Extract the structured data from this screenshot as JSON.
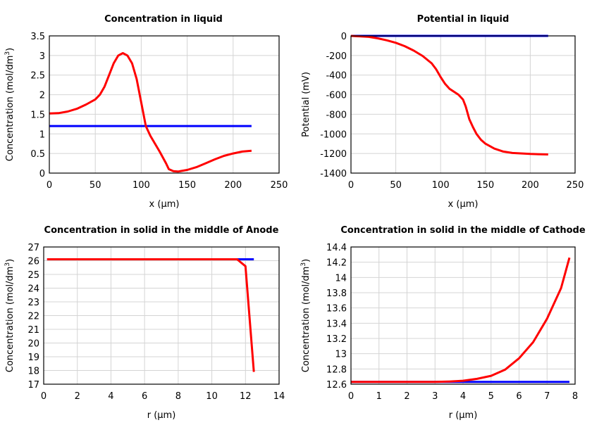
{
  "chart_data": [
    {
      "type": "line",
      "title": "Concentration in liquid",
      "xlabel": "x (µm)",
      "ylabel": "Concentration (mol/dm",
      "ylabel_sup": "3",
      "ylabel_end": ")",
      "xlim": [
        0,
        250
      ],
      "ylim": [
        0,
        3.5
      ],
      "xticks": [
        0,
        50,
        100,
        150,
        200,
        250
      ],
      "yticks": [
        0,
        0.5,
        1,
        1.5,
        2,
        2.5,
        3,
        3.5
      ],
      "grid": true,
      "series": [
        {
          "color": "#0000ff",
          "x": [
            0,
            220
          ],
          "y": [
            1.2,
            1.2
          ]
        },
        {
          "color": "#ff0000",
          "x": [
            0,
            10,
            20,
            30,
            40,
            50,
            55,
            60,
            65,
            70,
            75,
            80,
            85,
            90,
            95,
            100,
            105,
            110,
            120,
            127,
            130,
            135,
            140,
            150,
            160,
            170,
            180,
            190,
            200,
            210,
            220
          ],
          "y": [
            1.52,
            1.53,
            1.57,
            1.64,
            1.75,
            1.88,
            2.0,
            2.2,
            2.5,
            2.8,
            3.0,
            3.06,
            3.0,
            2.8,
            2.4,
            1.8,
            1.2,
            0.95,
            0.55,
            0.25,
            0.1,
            0.05,
            0.04,
            0.08,
            0.15,
            0.25,
            0.35,
            0.44,
            0.5,
            0.55,
            0.57
          ]
        }
      ]
    },
    {
      "type": "line",
      "title": "Potential in liquid",
      "xlabel": "x (µm)",
      "ylabel": "Potential (mV)",
      "xlim": [
        0,
        250
      ],
      "ylim": [
        -1400,
        0
      ],
      "xticks": [
        0,
        50,
        100,
        150,
        200,
        250
      ],
      "yticks": [
        -1400,
        -1200,
        -1000,
        -800,
        -600,
        -400,
        -200,
        0
      ],
      "grid": true,
      "series": [
        {
          "color": "#0000ff",
          "x": [
            0,
            220
          ],
          "y": [
            0,
            0
          ]
        },
        {
          "color": "#ff0000",
          "x": [
            0,
            20,
            30,
            40,
            50,
            60,
            70,
            80,
            90,
            95,
            100,
            105,
            110,
            120,
            125,
            128,
            132,
            136,
            140,
            145,
            150,
            160,
            170,
            180,
            200,
            220
          ],
          "y": [
            0,
            -10,
            -25,
            -45,
            -70,
            -105,
            -150,
            -205,
            -280,
            -340,
            -420,
            -490,
            -540,
            -600,
            -650,
            -720,
            -850,
            -930,
            -1000,
            -1060,
            -1100,
            -1150,
            -1180,
            -1195,
            -1205,
            -1210
          ]
        }
      ]
    },
    {
      "type": "line",
      "title": "Concentration in solid in the middle of Anode",
      "xlabel": "r (µm)",
      "ylabel": "Concentration (mol/dm",
      "ylabel_sup": "3",
      "ylabel_end": ")",
      "xlim": [
        0,
        14
      ],
      "ylim": [
        17,
        27
      ],
      "xticks": [
        0,
        2,
        4,
        6,
        8,
        10,
        12,
        14
      ],
      "yticks": [
        17,
        18,
        19,
        20,
        21,
        22,
        23,
        24,
        25,
        26,
        27
      ],
      "grid": true,
      "series": [
        {
          "color": "#0000ff",
          "x": [
            0.2,
            12.5
          ],
          "y": [
            26.1,
            26.1
          ]
        },
        {
          "color": "#ff0000",
          "x": [
            0.2,
            11.5,
            12.0,
            12.5
          ],
          "y": [
            26.1,
            26.1,
            25.6,
            17.9
          ]
        }
      ]
    },
    {
      "type": "line",
      "title": "Concentration in solid in the middle of Cathode",
      "xlabel": "r (µm)",
      "ylabel": "Concentration (mol/dm",
      "ylabel_sup": "3",
      "ylabel_end": ")",
      "xlim": [
        0,
        8
      ],
      "ylim": [
        12.6,
        14.4
      ],
      "xticks": [
        0,
        1,
        2,
        3,
        4,
        5,
        6,
        7,
        8
      ],
      "yticks": [
        12.6,
        12.8,
        13,
        13.2,
        13.4,
        13.6,
        13.8,
        14,
        14.2,
        14.4
      ],
      "grid": true,
      "series": [
        {
          "color": "#0000ff",
          "x": [
            0,
            7.8
          ],
          "y": [
            12.63,
            12.63
          ]
        },
        {
          "color": "#ff0000",
          "x": [
            0,
            3,
            3.5,
            4,
            4.5,
            5,
            5.5,
            6,
            6.5,
            7,
            7.5,
            7.8
          ],
          "y": [
            12.63,
            12.63,
            12.635,
            12.645,
            12.67,
            12.71,
            12.79,
            12.94,
            13.15,
            13.46,
            13.86,
            14.26
          ]
        }
      ]
    }
  ]
}
